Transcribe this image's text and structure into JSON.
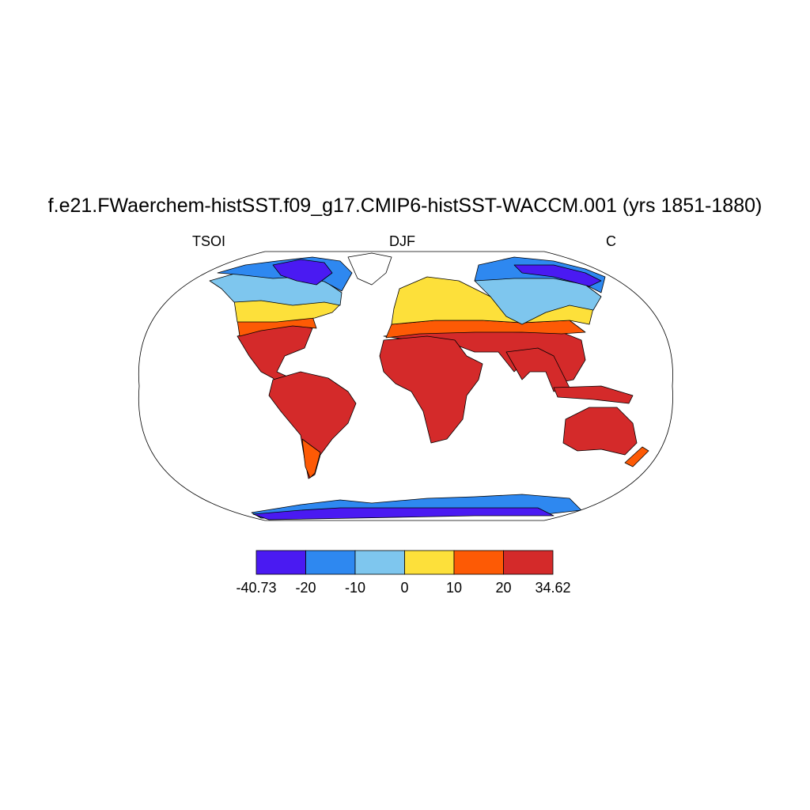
{
  "title": "f.e21.FWaerchem-histSST.f09_g17.CMIP6-histSST-WACCM.001 (yrs 1851-1880)",
  "left_label": "TSOI",
  "center_label": "DJF",
  "right_label": "C",
  "colorbar": {
    "colors": [
      "#4a1af2",
      "#2e88f0",
      "#7ec6ee",
      "#fde03a",
      "#fd5a05",
      "#d42a2a"
    ],
    "labels": [
      "-40.73",
      "-20",
      "-10",
      "0",
      "10",
      "20",
      "34.62"
    ]
  },
  "map_colors": {
    "ocean": "#ffffff",
    "coast": "#000000"
  }
}
